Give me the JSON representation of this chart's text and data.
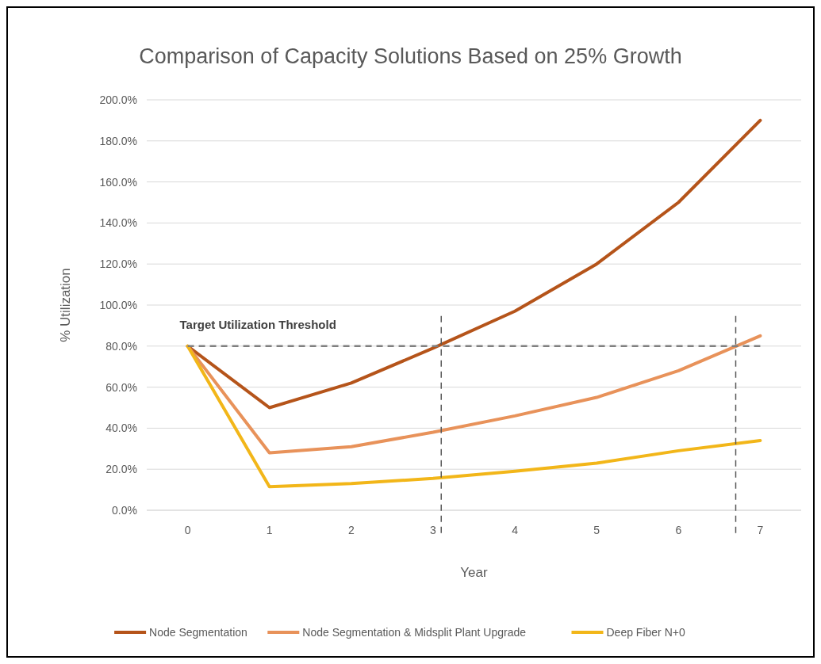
{
  "chart_data": {
    "type": "line",
    "title": "Comparison of Capacity Solutions Based on 25% Growth",
    "xlabel": "Year",
    "ylabel": "% Utilization",
    "x": [
      0,
      1,
      2,
      3,
      4,
      5,
      6,
      7
    ],
    "xlim": [
      -0.5,
      7.5
    ],
    "xticks": [
      0,
      1,
      2,
      3,
      4,
      5,
      6,
      7
    ],
    "ylim": [
      0,
      200
    ],
    "yticks": [
      {
        "value": 0,
        "label": "0.0%"
      },
      {
        "value": 20,
        "label": "20.0%"
      },
      {
        "value": 40,
        "label": "40.0%"
      },
      {
        "value": 60,
        "label": "60.0%"
      },
      {
        "value": 80,
        "label": "80.0%"
      },
      {
        "value": 100,
        "label": "100.0%"
      },
      {
        "value": 120,
        "label": "120.0%"
      },
      {
        "value": 140,
        "label": "140.0%"
      },
      {
        "value": 160,
        "label": "160.0%"
      },
      {
        "value": 180,
        "label": "180.0%"
      },
      {
        "value": 200,
        "label": "200.0%"
      }
    ],
    "series": [
      {
        "name": "Node Segmentation",
        "color": "#b5541a",
        "values": [
          80,
          50,
          62,
          79,
          97,
          120,
          150,
          190
        ]
      },
      {
        "name": "Node Segmentation & Midsplit Plant Upgrade",
        "color": "#e8925a",
        "values": [
          80,
          28,
          31,
          38,
          46,
          55,
          68,
          85
        ]
      },
      {
        "name": "Deep Fiber N+0",
        "color": "#f2b619",
        "values": [
          80,
          11.5,
          13,
          15.5,
          19,
          23,
          29,
          34
        ]
      }
    ],
    "ref_lines": [
      {
        "axis": "y",
        "value": 80,
        "label": "Target Utilization Threshold",
        "color": "#7f7f7f",
        "line_style": "dashed"
      },
      {
        "axis": "x",
        "value": 3.1,
        "color": "#595959",
        "line_style": "dashed"
      },
      {
        "axis": "x",
        "value": 6.7,
        "color": "#595959",
        "line_style": "dashed"
      }
    ],
    "grid": "y",
    "legend": "bottom",
    "marker": "none",
    "line_style": "solid"
  }
}
